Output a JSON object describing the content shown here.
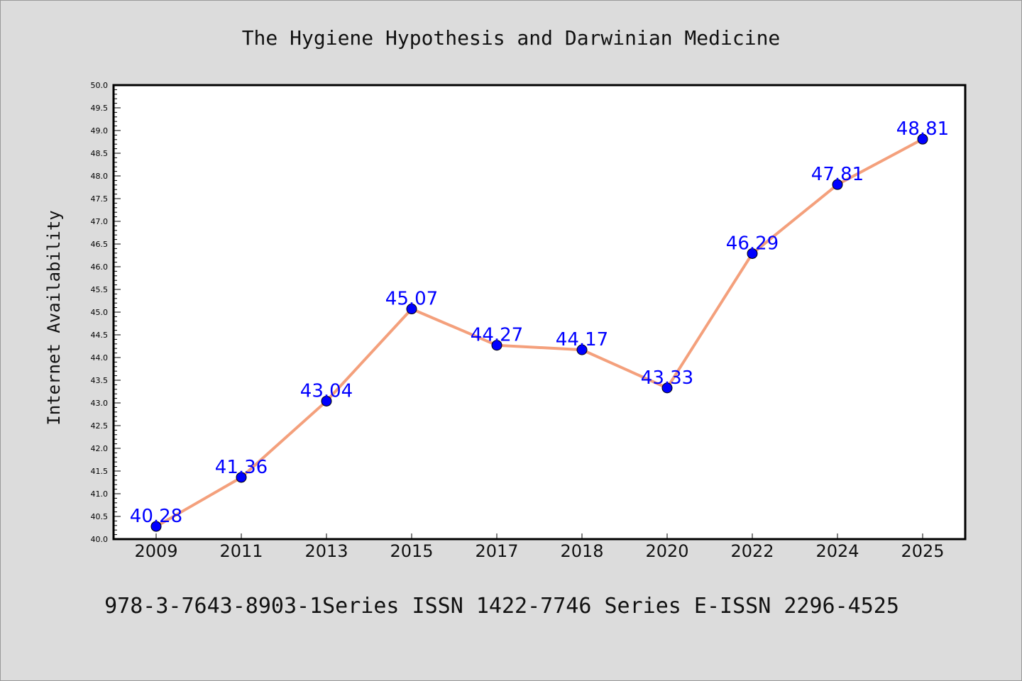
{
  "chart_data": {
    "type": "line",
    "title": "The Hygiene Hypothesis and Darwinian Medicine",
    "xlabel": "",
    "ylabel": "Internet Availability",
    "categories": [
      "2009",
      "2011",
      "2013",
      "2015",
      "2017",
      "2018",
      "2020",
      "2022",
      "2024",
      "2025"
    ],
    "series": [
      {
        "values": [
          40.28,
          41.36,
          43.04,
          45.07,
          44.27,
          44.17,
          43.33,
          46.29,
          47.81,
          48.81
        ],
        "labels": [
          "40.28",
          "41.36",
          "43.04",
          "45.07",
          "44.27",
          "44.17",
          "43.33",
          "46.29",
          "47.81",
          "48.81"
        ]
      }
    ],
    "ylim": [
      40.0,
      50.0
    ],
    "yticks": [
      "40.0",
      "40.5",
      "41.0",
      "41.5",
      "42.0",
      "42.5",
      "43.0",
      "43.5",
      "44.0",
      "44.5",
      "45.0",
      "45.5",
      "46.0",
      "46.5",
      "47.0",
      "47.5",
      "48.0",
      "48.5",
      "49.0",
      "49.5",
      "50.0"
    ],
    "grid": false,
    "legend": "none",
    "colors": {
      "line": "#f4a07c",
      "marker": "#0000ff",
      "data_label": "#0000ff",
      "background": "#dcdcdc",
      "plot_background": "#ffffff"
    }
  },
  "footer": {
    "text": "978-3-7643-8903-1Series ISSN 1422-7746 Series E-ISSN 2296-4525"
  }
}
